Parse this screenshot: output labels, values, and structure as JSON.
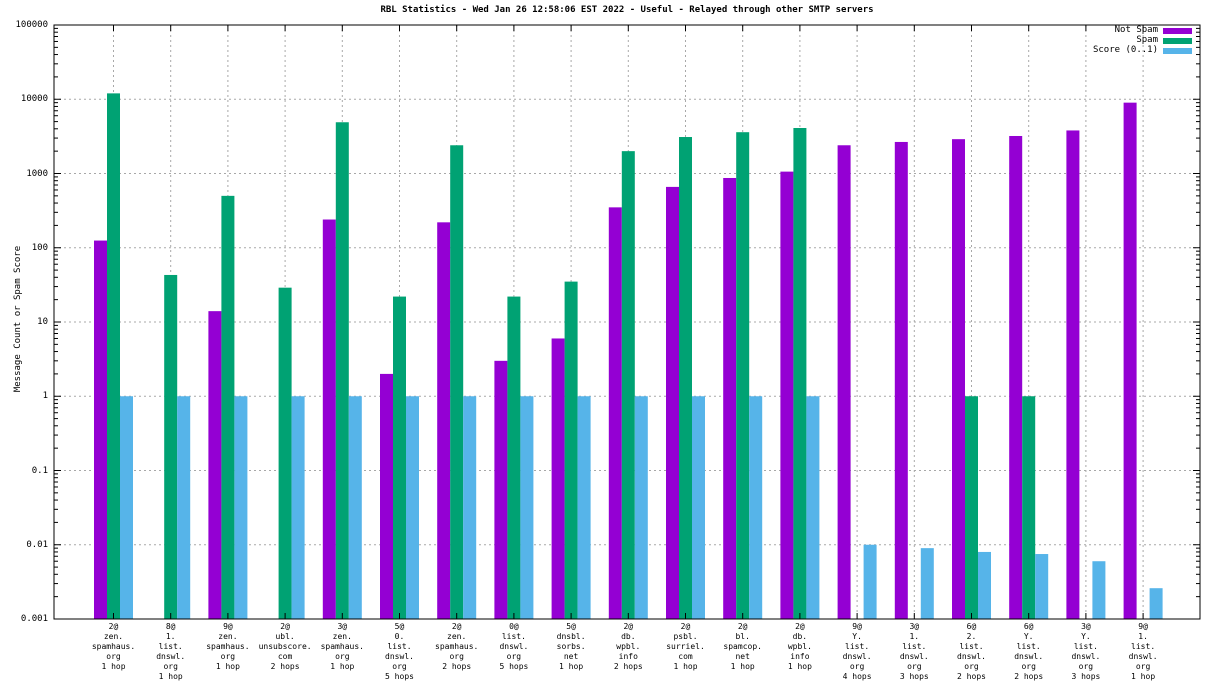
{
  "chart_data": {
    "type": "bar",
    "title": "RBL Statistics - Wed Jan 26 12:58:06 EST 2022 - Useful - Relayed through other SMTP servers",
    "ylabel": "Message Count or Spam Score",
    "xlabel": "",
    "y_scale": "log",
    "ylim": [
      0.001,
      100000
    ],
    "ytick_labels": [
      "100000",
      "10000",
      "1000",
      "100",
      "10",
      "1",
      "0.1",
      "0.01",
      "0.001"
    ],
    "grid": true,
    "legend_position": "top-right",
    "colors": {
      "not_spam": "#9400d3",
      "spam": "#00a273",
      "score": "#56b4e9",
      "grid": "#a8a8a8",
      "axis": "#000000"
    },
    "legend": [
      {
        "name": "Not Spam",
        "color": "#9400d3"
      },
      {
        "name": "Spam",
        "color": "#00a273"
      },
      {
        "name": "Score (0..1)",
        "color": "#56b4e9"
      }
    ],
    "categories": [
      [
        "2@",
        "zen.",
        "spamhaus.",
        "org",
        "1 hop"
      ],
      [
        "8@",
        "1.",
        "list.",
        "dnswl.",
        "org",
        "1 hop"
      ],
      [
        "9@",
        "zen.",
        "spamhaus.",
        "org",
        "1 hop"
      ],
      [
        "2@",
        "ubl.",
        "unsubscore.",
        "com",
        "2 hops"
      ],
      [
        "3@",
        "zen.",
        "spamhaus.",
        "org",
        "1 hop"
      ],
      [
        "5@",
        "0.",
        "list.",
        "dnswl.",
        "org",
        "5 hops"
      ],
      [
        "2@",
        "zen.",
        "spamhaus.",
        "org",
        "2 hops"
      ],
      [
        "0@",
        "list.",
        "dnswl.",
        "org",
        "5 hops"
      ],
      [
        "5@",
        "dnsbl.",
        "sorbs.",
        "net",
        "1 hop"
      ],
      [
        "2@",
        "db.",
        "wpbl.",
        "info",
        "2 hops"
      ],
      [
        "2@",
        "psbl.",
        "surriel.",
        "com",
        "1 hop"
      ],
      [
        "2@",
        "bl.",
        "spamcop.",
        "net",
        "1 hop"
      ],
      [
        "2@",
        "db.",
        "wpbl.",
        "info",
        "1 hop"
      ],
      [
        "9@",
        "Y.",
        "list.",
        "dnswl.",
        "org",
        "4 hops"
      ],
      [
        "3@",
        "1.",
        "list.",
        "dnswl.",
        "org",
        "3 hops"
      ],
      [
        "6@",
        "2.",
        "list.",
        "dnswl.",
        "org",
        "2 hops"
      ],
      [
        "6@",
        "Y.",
        "list.",
        "dnswl.",
        "org",
        "2 hops"
      ],
      [
        "3@",
        "Y.",
        "list.",
        "dnswl.",
        "org",
        "3 hops"
      ],
      [
        "9@",
        "1.",
        "list.",
        "dnswl.",
        "org",
        "1 hop"
      ]
    ],
    "series": [
      {
        "name": "Not Spam",
        "color": "#9400d3",
        "values": [
          125,
          null,
          14,
          null,
          240,
          2,
          220,
          3,
          6,
          350,
          660,
          870,
          1060,
          2400,
          2660,
          2900,
          3200,
          3800,
          9000
        ]
      },
      {
        "name": "Spam",
        "color": "#00a273",
        "values": [
          12000,
          43,
          500,
          29,
          4900,
          22,
          2400,
          22,
          35,
          2000,
          3100,
          3600,
          4100,
          null,
          null,
          1,
          1,
          null,
          null
        ]
      },
      {
        "name": "Score (0..1)",
        "color": "#56b4e9",
        "values": [
          1,
          1,
          1,
          1,
          1,
          1,
          1,
          1,
          1,
          1,
          1,
          1,
          1,
          0.01,
          0.009,
          0.008,
          0.0075,
          0.006,
          0.0026
        ]
      }
    ]
  }
}
